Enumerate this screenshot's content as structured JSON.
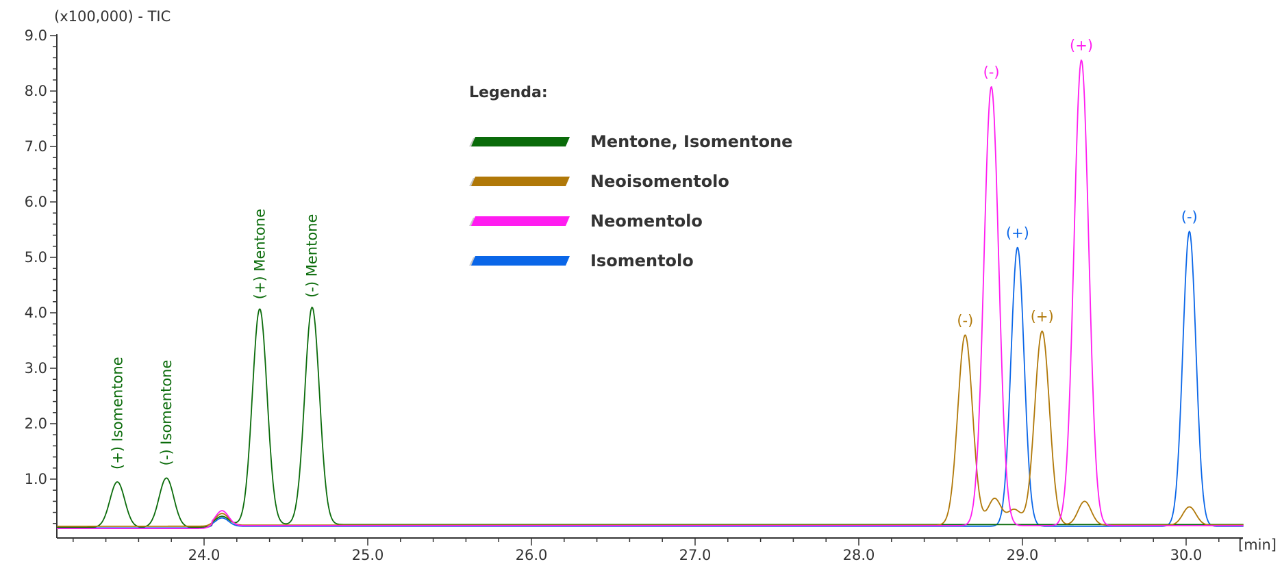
{
  "chart_data": {
    "type": "line",
    "title": "",
    "ylabel": "(x100,000) - TIC",
    "xlabel": "[min]",
    "xlim": [
      23.1,
      30.35
    ],
    "ylim": [
      0,
      9.2
    ],
    "xticks": [
      "24.0",
      "25.0",
      "26.0",
      "27.0",
      "28.0",
      "29.0",
      "30.0"
    ],
    "xtick_values": [
      24.0,
      25.0,
      26.0,
      27.0,
      28.0,
      29.0,
      30.0
    ],
    "yticks": [
      "1.0",
      "2.0",
      "3.0",
      "4.0",
      "5.0",
      "6.0",
      "7.0",
      "8.0",
      "9.0"
    ],
    "ytick_values": [
      1,
      2,
      3,
      4,
      5,
      6,
      7,
      8,
      9
    ],
    "legend": {
      "title": "Legenda:",
      "placement": "top-center",
      "entries": [
        "Mentone, Isomentone",
        "Neoisomentolo",
        "Neomentolo",
        "Isomentolo"
      ]
    },
    "series": [
      {
        "name": "Mentone, Isomentone",
        "color": "#0a6b0a",
        "baseline": 0.13,
        "baseline_after": 0.18,
        "baseline_step_at": 24.05,
        "peaks": [
          {
            "x": 23.47,
            "y": 1.0,
            "width": 0.045
          },
          {
            "x": 23.77,
            "y": 1.07,
            "width": 0.045
          },
          {
            "x": 24.11,
            "y": 0.33,
            "width": 0.04
          },
          {
            "x": 24.34,
            "y": 4.07,
            "width": 0.045
          },
          {
            "x": 24.66,
            "y": 4.1,
            "width": 0.045
          }
        ]
      },
      {
        "name": "Neoisomentolo",
        "color": "#b07808",
        "baseline": 0.15,
        "baseline_after": 0.17,
        "baseline_step_at": 24.05,
        "peaks": [
          {
            "x": 24.11,
            "y": 0.38,
            "width": 0.04
          },
          {
            "x": 28.65,
            "y": 3.6,
            "width": 0.045
          },
          {
            "x": 28.83,
            "y": 0.65,
            "width": 0.04
          },
          {
            "x": 28.95,
            "y": 0.45,
            "width": 0.04
          },
          {
            "x": 29.12,
            "y": 3.67,
            "width": 0.045
          },
          {
            "x": 29.38,
            "y": 0.6,
            "width": 0.04
          },
          {
            "x": 30.02,
            "y": 0.5,
            "width": 0.04
          }
        ]
      },
      {
        "name": "Neomentolo",
        "color": "#ff1cf0",
        "baseline": 0.11,
        "baseline_after": 0.16,
        "baseline_step_at": 24.05,
        "peaks": [
          {
            "x": 24.11,
            "y": 0.43,
            "width": 0.04
          },
          {
            "x": 28.81,
            "y": 8.08,
            "width": 0.045
          },
          {
            "x": 29.36,
            "y": 8.56,
            "width": 0.045
          }
        ]
      },
      {
        "name": "Isomentolo",
        "color": "#0a66e8",
        "baseline": 0.12,
        "baseline_after": 0.15,
        "baseline_step_at": 24.05,
        "peaks": [
          {
            "x": 24.11,
            "y": 0.3,
            "width": 0.04
          },
          {
            "x": 28.97,
            "y": 5.18,
            "width": 0.04
          },
          {
            "x": 30.02,
            "y": 5.47,
            "width": 0.04
          }
        ]
      }
    ],
    "annotations": [
      {
        "text": "(+) Isomentone",
        "series": 0,
        "x": 23.47,
        "y": 1.0,
        "rotated": true
      },
      {
        "text": "(-) Isomentone",
        "series": 0,
        "x": 23.77,
        "y": 1.07,
        "rotated": true
      },
      {
        "text": "(+) Mentone",
        "series": 0,
        "x": 24.34,
        "y": 4.07,
        "rotated": true
      },
      {
        "text": "(-) Mentone",
        "series": 0,
        "x": 24.66,
        "y": 4.1,
        "rotated": true
      },
      {
        "text": "(-)",
        "series": 1,
        "x": 28.65,
        "y": 3.6,
        "rotated": false
      },
      {
        "text": "(+)",
        "series": 1,
        "x": 29.12,
        "y": 3.67,
        "rotated": false
      },
      {
        "text": "(-)",
        "series": 2,
        "x": 28.81,
        "y": 8.08,
        "rotated": false
      },
      {
        "text": "(+)",
        "series": 2,
        "x": 29.36,
        "y": 8.56,
        "rotated": false
      },
      {
        "text": "(+)",
        "series": 3,
        "x": 28.97,
        "y": 5.18,
        "rotated": false
      },
      {
        "text": "(-)",
        "series": 3,
        "x": 30.02,
        "y": 5.47,
        "rotated": false
      }
    ]
  }
}
